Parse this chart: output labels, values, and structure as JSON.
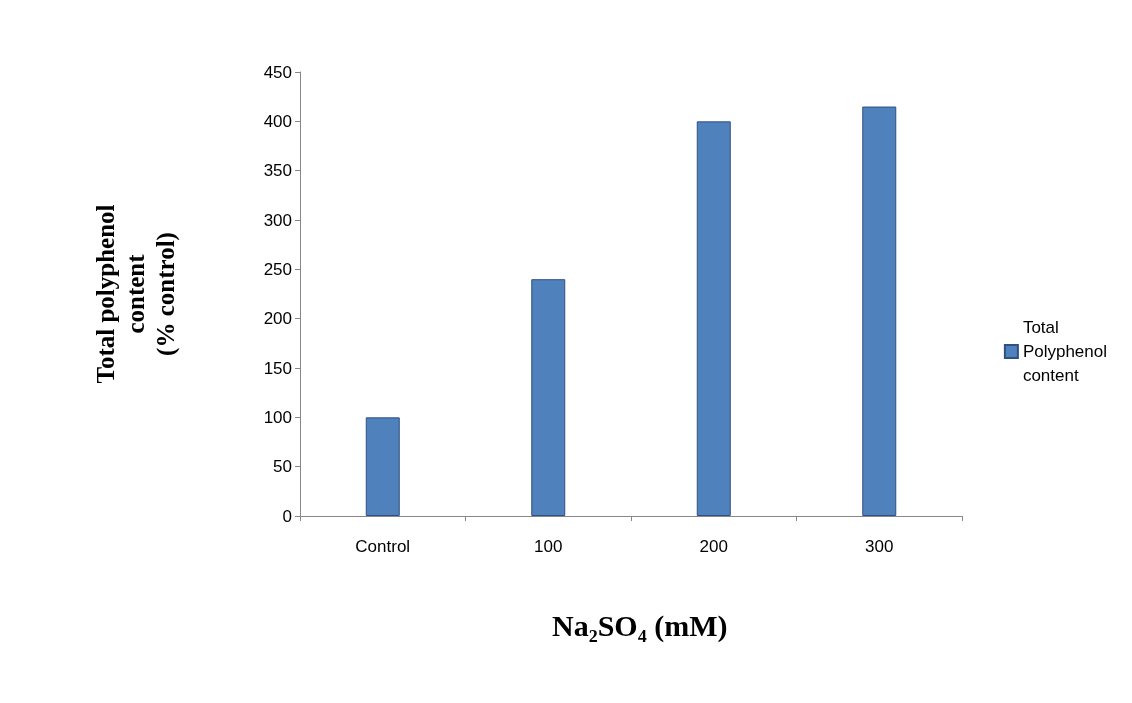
{
  "chart_data": {
    "type": "bar",
    "xlabel": "Na₂SO₄ (mM)",
    "ylabel": "Total polyphenol\ncontent\n(% control)",
    "categories": [
      "Control",
      "100",
      "200",
      "300"
    ],
    "series": [
      {
        "name": "Total\nPolyphenol\ncontent",
        "color": "#4f81bd",
        "values": [
          100,
          240,
          400,
          415
        ]
      }
    ],
    "ylim": [
      0,
      450
    ],
    "yticks": [
      0,
      50,
      100,
      150,
      200,
      250,
      300,
      350,
      400,
      450
    ],
    "grid": false,
    "legend": "right"
  }
}
